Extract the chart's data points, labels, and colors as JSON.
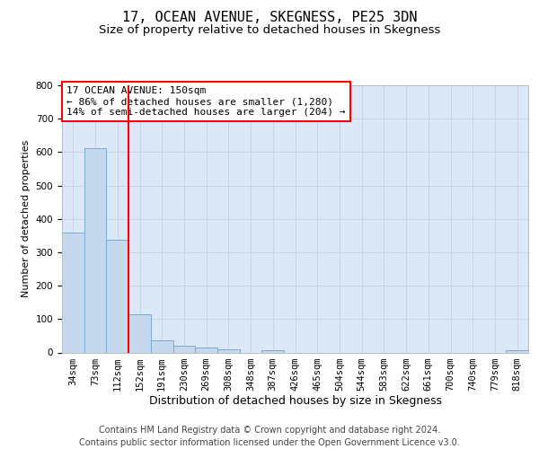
{
  "title": "17, OCEAN AVENUE, SKEGNESS, PE25 3DN",
  "subtitle": "Size of property relative to detached houses in Skegness",
  "xlabel": "Distribution of detached houses by size in Skegness",
  "ylabel": "Number of detached properties",
  "bar_labels": [
    "34sqm",
    "73sqm",
    "112sqm",
    "152sqm",
    "191sqm",
    "230sqm",
    "269sqm",
    "308sqm",
    "348sqm",
    "387sqm",
    "426sqm",
    "465sqm",
    "504sqm",
    "544sqm",
    "583sqm",
    "622sqm",
    "661sqm",
    "700sqm",
    "740sqm",
    "779sqm",
    "818sqm"
  ],
  "bar_values": [
    358,
    612,
    338,
    114,
    36,
    20,
    15,
    10,
    0,
    8,
    0,
    0,
    0,
    0,
    0,
    0,
    0,
    0,
    0,
    0,
    8
  ],
  "bar_color": "#c5d8ee",
  "bar_edge_color": "#7aaad0",
  "annotation_line1": "17 OCEAN AVENUE: 150sqm",
  "annotation_line2": "← 86% of detached houses are smaller (1,280)",
  "annotation_line3": "14% of semi-detached houses are larger (204) →",
  "annotation_box_color": "white",
  "annotation_box_edge_color": "red",
  "vline_color": "red",
  "vline_x": 2.5,
  "ylim_max": 800,
  "yticks": [
    0,
    100,
    200,
    300,
    400,
    500,
    600,
    700,
    800
  ],
  "grid_color": "#c8d4e8",
  "bg_color": "#dce8f8",
  "footer_line1": "Contains HM Land Registry data © Crown copyright and database right 2024.",
  "footer_line2": "Contains public sector information licensed under the Open Government Licence v3.0.",
  "title_fontsize": 11,
  "subtitle_fontsize": 9.5,
  "annotation_fontsize": 8,
  "ylabel_fontsize": 8,
  "xlabel_fontsize": 9,
  "tick_fontsize": 7.5,
  "footer_fontsize": 7
}
